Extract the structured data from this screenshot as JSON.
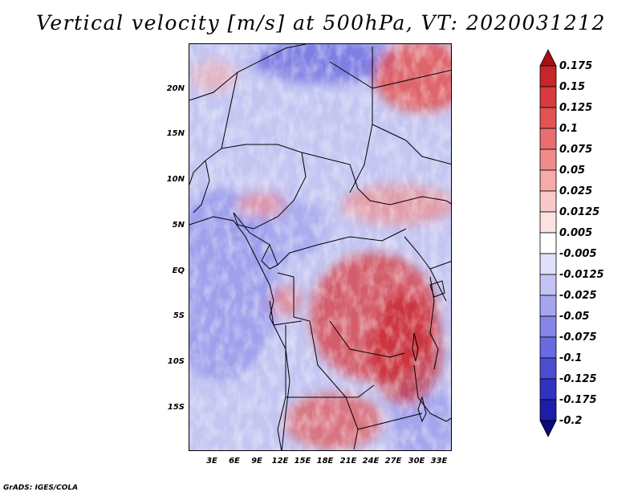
{
  "title": "Vertical velocity [m/s] at 500hPa, VT: 2020031212",
  "footer": "GrADS: IGES/COLA",
  "map": {
    "lat_labels": [
      "20N",
      "15N",
      "10N",
      "5N",
      "EQ",
      "5S",
      "10S",
      "15S"
    ],
    "lon_labels": [
      "3E",
      "6E",
      "9E",
      "12E",
      "15E",
      "18E",
      "21E",
      "24E",
      "27E",
      "30E",
      "33E"
    ]
  },
  "colorbar": {
    "labels": [
      "0.175",
      "0.15",
      "0.125",
      "0.1",
      "0.075",
      "0.05",
      "0.025",
      "0.0125",
      "0.005",
      "-0.005",
      "-0.0125",
      "-0.025",
      "-0.05",
      "-0.075",
      "-0.1",
      "-0.125",
      "-0.175",
      "-0.2"
    ],
    "colors": [
      "#a50f15",
      "#c7242b",
      "#d93a3d",
      "#e35353",
      "#ea6e6e",
      "#f08b8b",
      "#f6aaaa",
      "#f9c8c8",
      "#fce3e3",
      "#ffffff",
      "#e0e0fa",
      "#c3c3f5",
      "#a5a5ef",
      "#8686e8",
      "#6a6ae0",
      "#4d4dd4",
      "#3131c2",
      "#1d1da8",
      "#0a0a7a"
    ]
  }
}
